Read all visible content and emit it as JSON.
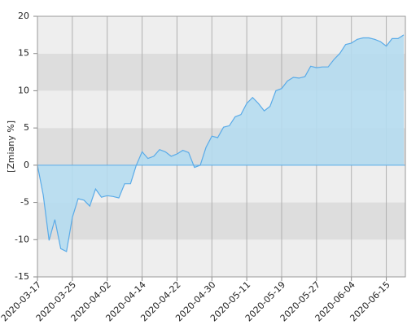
{
  "chart_data": {
    "type": "area",
    "y_label": "[Zmiany %]",
    "categories": [
      "2020-03-17",
      null,
      null,
      null,
      null,
      null,
      "2020-03-25",
      null,
      null,
      null,
      null,
      null,
      "2020-04-02",
      null,
      null,
      null,
      null,
      null,
      "2020-04-14",
      null,
      null,
      null,
      null,
      null,
      "2020-04-22",
      null,
      null,
      null,
      null,
      null,
      "2020-04-30",
      null,
      null,
      null,
      null,
      null,
      "2020-05-11",
      null,
      null,
      null,
      null,
      null,
      "2020-05-19",
      null,
      null,
      null,
      null,
      null,
      "2020-05-27",
      null,
      null,
      null,
      null,
      null,
      "2020-06-04",
      null,
      null,
      null,
      null,
      null,
      "2020-06-15",
      null,
      null,
      null
    ],
    "values": [
      0,
      -4,
      -10.1,
      -7.3,
      -11.2,
      -11.6,
      -7,
      -4.5,
      -4.7,
      -5.5,
      -3.2,
      -4.3,
      -4.1,
      -4.2,
      -4.4,
      -2.5,
      -2.5,
      0,
      1.8,
      0.9,
      1.2,
      2.1,
      1.8,
      1.2,
      1.5,
      2.0,
      1.7,
      -0.3,
      0,
      2.4,
      3.9,
      3.7,
      5.1,
      5.3,
      6.5,
      6.8,
      8.3,
      9.1,
      8.3,
      7.3,
      7.9,
      10.0,
      10.3,
      11.3,
      11.8,
      11.7,
      11.9,
      13.3,
      13.1,
      13.2,
      13.2,
      14.2,
      15.0,
      16.2,
      16.4,
      16.9,
      17.1,
      17.1,
      16.9,
      16.6,
      16.0,
      17.0,
      17.0,
      17.5
    ],
    "color": "#5aabe8",
    "fill_color": "#b5dcef",
    "band_colors": [
      "#eeeeee",
      "#dddddd"
    ],
    "ylim": [
      -15,
      20
    ],
    "yticks": [
      -15,
      -10,
      -5,
      0,
      5,
      10,
      15,
      20
    ],
    "grid": true
  }
}
